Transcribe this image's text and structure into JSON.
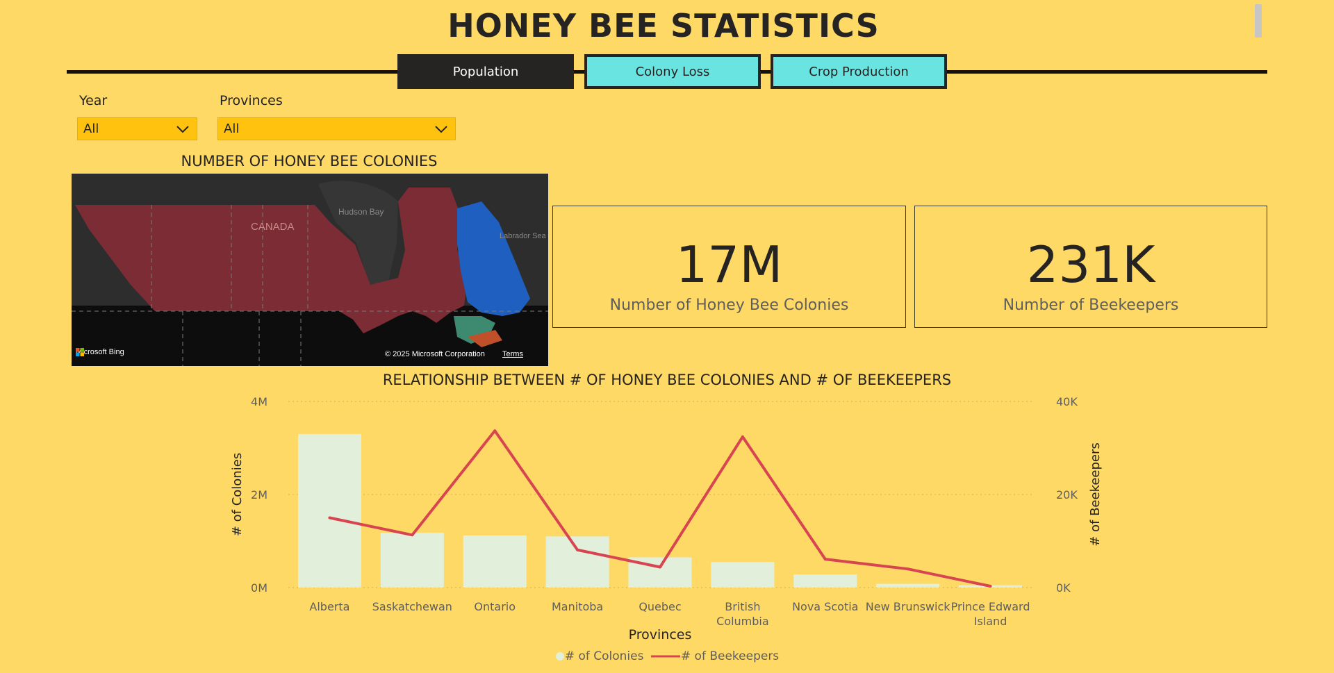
{
  "header": {
    "title": "HONEY BEE STATISTICS",
    "tabs": [
      {
        "label": "Population",
        "active": true
      },
      {
        "label": "Colony Loss",
        "active": false
      },
      {
        "label": "Crop Production",
        "active": false
      }
    ]
  },
  "filters": {
    "year": {
      "label": "Year",
      "value": "All"
    },
    "provinces": {
      "label": "Provinces",
      "value": "All"
    }
  },
  "map": {
    "title": "NUMBER OF HONEY BEE COLONIES",
    "labels": {
      "country": "CANADA",
      "bay": "Hudson Bay",
      "sea": "Labrador Sea"
    },
    "attribution": "Microsoft Bing",
    "copyright": "© 2025 Microsoft Corporation",
    "terms": "Terms"
  },
  "cards": [
    {
      "value": "17M",
      "label": "Number of Honey Bee Colonies"
    },
    {
      "value": "231K",
      "label": "Number of Beekeepers"
    }
  ],
  "colors": {
    "background": "#FFD966",
    "bar": "#E2EFDA",
    "line": "#D64550",
    "tab_active": "#252423",
    "tab_inactive": "#6AE4E1",
    "slicer": "#FFC20E"
  },
  "icons": {
    "dropdown": "chevron-down-icon"
  },
  "chart_data": {
    "type": "bar",
    "title": "RELATIONSHIP BETWEEN # OF HONEY BEE COLONIES AND # OF BEEKEEPERS",
    "xlabel": "Provinces",
    "ylabel": "# of Colonies",
    "y2label": "# of Beekeepers",
    "categories": [
      "Alberta",
      "Saskatchewan",
      "Ontario",
      "Manitoba",
      "Quebec",
      "British Columbia",
      "Nova Scotia",
      "New Brunswick",
      "Prince Edward Island"
    ],
    "series": [
      {
        "name": "# of Colonies",
        "type": "bar",
        "axis": "left",
        "values": [
          3300000,
          1180000,
          1120000,
          1100000,
          650000,
          550000,
          280000,
          80000,
          50000
        ]
      },
      {
        "name": "# of Beekeepers",
        "type": "line",
        "axis": "right",
        "values": [
          15000,
          11300,
          33700,
          8100,
          4400,
          32400,
          6100,
          4000,
          300
        ]
      }
    ],
    "ylim": [
      0,
      4000000
    ],
    "y2lim": [
      0,
      40000
    ],
    "yticks": [
      "0M",
      "2M",
      "4M"
    ],
    "y2ticks": [
      "0K",
      "20K",
      "40K"
    ],
    "grid": true,
    "legend": "bottom-center"
  }
}
